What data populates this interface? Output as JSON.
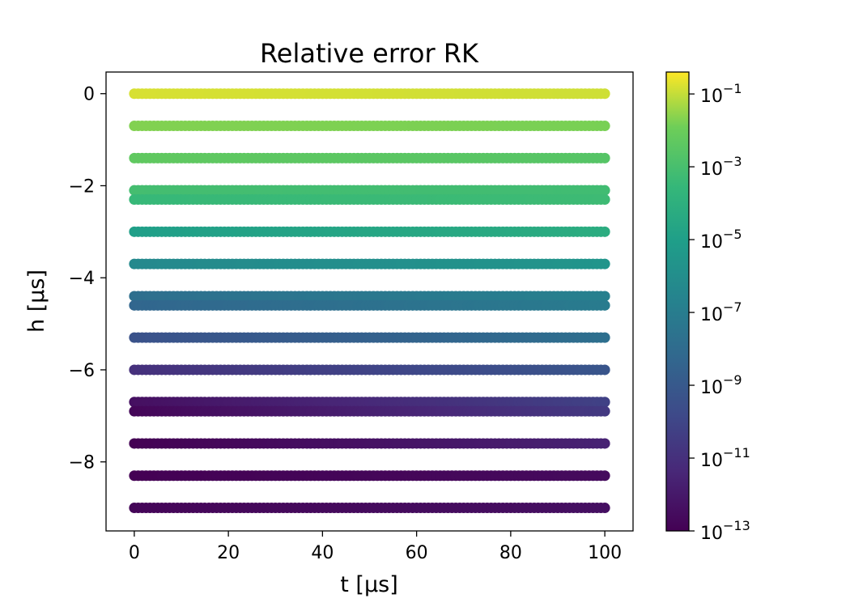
{
  "chart_data": {
    "type": "scatter",
    "title": "Relative error RK",
    "xlabel": "t [μs]",
    "ylabel": "h [μs]",
    "xlim": [
      -6,
      106
    ],
    "ylim": [
      -9.5,
      0.47
    ],
    "x_ticks": [
      0,
      20,
      40,
      60,
      80,
      100
    ],
    "x_tick_labels": [
      "0",
      "20",
      "40",
      "60",
      "80",
      "100"
    ],
    "y_ticks": [
      0,
      -2,
      -4,
      -6,
      -8
    ],
    "y_tick_labels": [
      "0",
      "−2",
      "−4",
      "−6",
      "−8"
    ],
    "grid": false,
    "colormap": "viridis",
    "colorbar": {
      "scale": "log",
      "range": [
        1e-13,
        0.4
      ],
      "ticks": [
        {
          "base": "10",
          "exp": "−1",
          "value": -1
        },
        {
          "base": "10",
          "exp": "−3",
          "value": -3
        },
        {
          "base": "10",
          "exp": "−5",
          "value": -5
        },
        {
          "base": "10",
          "exp": "−7",
          "value": -7
        },
        {
          "base": "10",
          "exp": "−9",
          "value": -9
        },
        {
          "base": "10",
          "exp": "−11",
          "value": -11
        },
        {
          "base": "10",
          "exp": "−13",
          "value": -13
        }
      ]
    },
    "series": [
      {
        "h": 0.0,
        "t_range": [
          0,
          100
        ],
        "log10_error_start": -0.8,
        "log10_error_end": -0.9
      },
      {
        "h": -0.7,
        "t_range": [
          0,
          100
        ],
        "log10_error_start": -1.7,
        "log10_error_end": -1.8
      },
      {
        "h": -1.4,
        "t_range": [
          0,
          100
        ],
        "log10_error_start": -2.3,
        "log10_error_end": -2.6
      },
      {
        "h": -2.1,
        "t_range": [
          0,
          100
        ],
        "log10_error_start": -3.1,
        "log10_error_end": -3.2
      },
      {
        "h": -2.3,
        "t_range": [
          0,
          100
        ],
        "log10_error_start": -3.5,
        "log10_error_end": -3.3
      },
      {
        "h": -3.0,
        "t_range": [
          0,
          100
        ],
        "log10_error_start": -5.0,
        "log10_error_end": -4.2
      },
      {
        "h": -3.7,
        "t_range": [
          0,
          100
        ],
        "log10_error_start": -6.3,
        "log10_error_end": -5.6
      },
      {
        "h": -4.4,
        "t_range": [
          0,
          100
        ],
        "log10_error_start": -7.8,
        "log10_error_end": -6.8
      },
      {
        "h": -4.6,
        "t_range": [
          0,
          100
        ],
        "log10_error_start": -8.3,
        "log10_error_end": -7.1
      },
      {
        "h": -5.3,
        "t_range": [
          0,
          100
        ],
        "log10_error_start": -9.4,
        "log10_error_end": -7.8
      },
      {
        "h": -6.0,
        "t_range": [
          0,
          100
        ],
        "log10_error_start": -11.0,
        "log10_error_end": -9.2
      },
      {
        "h": -6.7,
        "t_range": [
          0,
          100
        ],
        "log10_error_start": -12.4,
        "log10_error_end": -10.2
      },
      {
        "h": -6.9,
        "t_range": [
          0,
          100
        ],
        "log10_error_start": -12.8,
        "log10_error_end": -10.6
      },
      {
        "h": -7.6,
        "t_range": [
          0,
          100
        ],
        "log10_error_start": -13.0,
        "log10_error_end": -11.6
      },
      {
        "h": -8.3,
        "t_range": [
          0,
          100
        ],
        "log10_error_start": -13.0,
        "log10_error_end": -12.6
      },
      {
        "h": -9.0,
        "t_range": [
          0,
          100
        ],
        "log10_error_start": -12.8,
        "log10_error_end": -12.4
      }
    ]
  }
}
